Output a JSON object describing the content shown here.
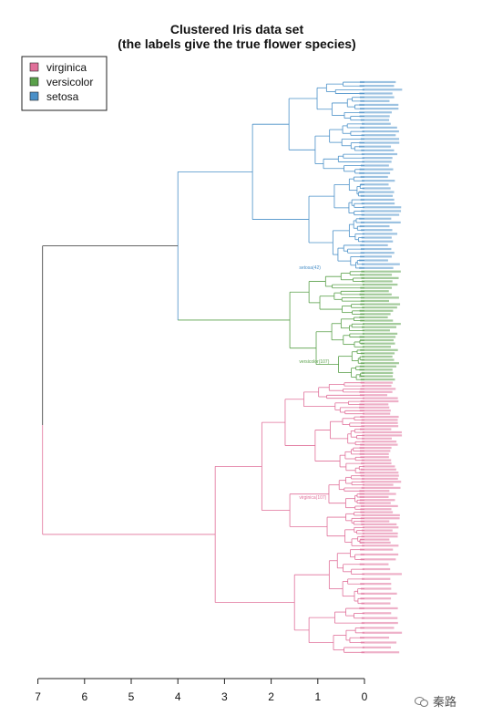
{
  "chart_data": {
    "type": "dendrogram",
    "title_lines": [
      "Clustered Iris data set",
      "(the labels give the true flower species)"
    ],
    "legend": [
      {
        "label": "virginica",
        "color": "#e0709a"
      },
      {
        "label": "versicolor",
        "color": "#5aa04a"
      },
      {
        "label": "setosa",
        "color": "#4a90c8"
      }
    ],
    "colors": {
      "root": "#333333",
      "virginica": "#e0709a",
      "versicolor": "#5aa04a",
      "setosa": "#4a90c8"
    },
    "xlim": [
      7,
      0
    ],
    "ticks": [
      7,
      6,
      5,
      4,
      3,
      2,
      1,
      0
    ],
    "tick_labels": [
      "7",
      "6",
      "5",
      "4",
      "3",
      "2",
      "1",
      "0"
    ],
    "root_height": 6.9,
    "leaf_label_samples": [
      {
        "text": "setosa(42)",
        "species": "setosa"
      },
      {
        "text": "versicolor(107)",
        "species": "versicolor"
      },
      {
        "text": "virginica(107)",
        "species": "virginica"
      }
    ]
  },
  "watermark": {
    "text": "秦路",
    "icon": "wechat-icon"
  }
}
